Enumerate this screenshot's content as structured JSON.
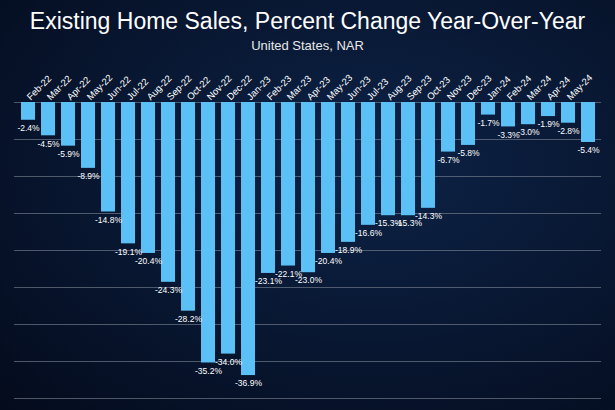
{
  "chart_data": {
    "type": "bar",
    "title": "Existing Home Sales, Percent Change Year-Over-Year",
    "subtitle": "United States, NAR",
    "categories": [
      "Feb-22",
      "Mar-22",
      "Apr-22",
      "May-22",
      "Jun-22",
      "Jul-22",
      "Aug-22",
      "Sep-22",
      "Oct-22",
      "Nov-22",
      "Dec-22",
      "Jan-23",
      "Feb-23",
      "Mar-23",
      "Apr-23",
      "May-23",
      "Jun-23",
      "Jul-23",
      "Aug-23",
      "Sep-23",
      "Oct-23",
      "Nov-23",
      "Dec-23",
      "Jan-24",
      "Feb-24",
      "Mar-24",
      "Apr-24",
      "May-24",
      null
    ],
    "values": [
      -2.4,
      -4.5,
      -5.9,
      -8.9,
      -14.8,
      -19.1,
      -20.4,
      -24.3,
      -28.2,
      -35.2,
      -34.0,
      -36.9,
      -23.1,
      -22.1,
      -23.0,
      -20.4,
      -18.9,
      -16.6,
      -15.3,
      -15.3,
      -14.3,
      -6.7,
      -5.8,
      -1.7,
      -3.3,
      -3.0,
      -1.9,
      -2.8,
      -5.4
    ],
    "value_labels": [
      "-2.4%",
      "-4.5%",
      "-5.9%",
      "-8.9%",
      "-14.8%",
      "-19.1%",
      "-20.4%",
      "-24.3%",
      "-28.2%",
      "-35.2%",
      "-34.0%",
      "-36.9%",
      "-23.1%",
      "-22.1%",
      "-23.0%",
      "-20.4%",
      "-18.9%",
      "-16.6%",
      "-15.3%",
      "-15.3%",
      "-14.3%",
      "-6.7%",
      "-5.8%",
      "-1.7%",
      "-3.3%",
      "-3.0%",
      "-1.9%",
      "-2.8%",
      "-5.4%"
    ],
    "color": "#5bc0f5",
    "ylim": [
      -40,
      0
    ],
    "yticks": [
      -40,
      -35,
      -30,
      -25,
      -20,
      -15,
      -10,
      -5,
      0
    ],
    "grid": true,
    "data_labels": true,
    "tick_labels": "x"
  }
}
